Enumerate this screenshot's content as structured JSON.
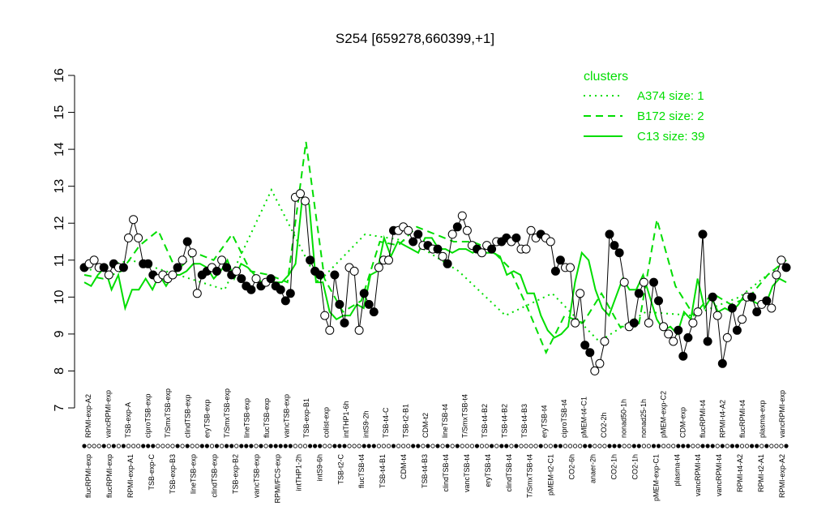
{
  "chart_data": {
    "type": "line",
    "title": "S254 [659278,660399,+1]",
    "ylim": [
      7,
      16
    ],
    "yticks": [
      7,
      8,
      9,
      10,
      11,
      12,
      13,
      14,
      15,
      16
    ],
    "legend": {
      "title": "clusters",
      "placement": "top-right",
      "entries": [
        {
          "label": "A374 size: 1",
          "style": "dotted"
        },
        {
          "label": "B172 size: 2",
          "style": "dashed"
        },
        {
          "label": "C13 size: 39",
          "style": "solid"
        }
      ]
    },
    "colors": {
      "cluster": "#00dd00",
      "series": "#000000"
    },
    "x_labels_top": [
      "RPMI-exp-A2",
      "vancRPMI-exp",
      "TSB-exp-A",
      "ciproTSB-exp",
      "T/SmxTSB-exp",
      "clindTSB-exp",
      "eryTSB-exp",
      "T/SmxTSB-exp",
      "lineTSB-exp",
      "flucTSB-exp",
      "vancTSB-exp",
      "TSB-exp-B1",
      "colist-exp",
      "intTHP1-6h",
      "intS9-2h",
      "TSB-t4-C",
      "TSB-t2-B1",
      "CDM-t2",
      "lineTSB-t4",
      "T/SmxTSB-t4",
      "TSB-t4-B2",
      "TSB-t4-B2",
      "TSB-t4-B3",
      "eryTSB-t4",
      "ciproTSB-t4",
      "pMEM-t4-C1",
      "CO2-2h",
      "nonad50-1h",
      "nonad25-1h",
      "pMEM-exp-C2",
      "CDM-exp",
      "flucRPMI-t4",
      "RPMI-t4-A2",
      "flucRPMI-t4",
      "plasma-exp",
      "vancRPMI-exp"
    ],
    "x_labels_bottom": [
      "flucRPMI-exp",
      "flucRPMI-exp",
      "RPMI-exp-A1",
      "TSB-exp-C",
      "TSB-exp-B3",
      "lineTSB-exp",
      "clindTSB-exp",
      "TSB-exp-B2",
      "vancTSB-exp",
      "RPMI/FCS-exp",
      "intTHP1-2h",
      "intS9-6h",
      "TSB-t2-C",
      "flucTSB-t4",
      "TSB-t4-B1",
      "CDM-t4",
      "TSB-t4-B3",
      "clindTSB-t4",
      "vancTSB-t4",
      "eryTSB-t4",
      "clindTSB-t4",
      "T/SmxTSB-t4",
      "pMEM-t2-C1",
      "CO2-6h",
      "anaer-2h",
      "CO2-1h",
      "CO2-1h",
      "pMEM-exp-C1",
      "plasma-t4",
      "vancRPMI-t4",
      "vancRPMI-t4",
      "RPMI-t4-A2",
      "RPMI-t2-A1",
      "RPMI-exp-A2"
    ],
    "series": [
      {
        "values": [
          10.8,
          10.9,
          11.0,
          10.8,
          10.8,
          10.6,
          10.9,
          10.8,
          10.8,
          11.6,
          12.1,
          11.6,
          10.9,
          10.9,
          10.6,
          10.5,
          10.6,
          10.5,
          10.6,
          10.8,
          11.0,
          11.5,
          11.2,
          10.1,
          10.6,
          10.7,
          10.8,
          10.7,
          11.0,
          10.8,
          10.6,
          10.7,
          10.5,
          10.3,
          10.2,
          10.5,
          10.3,
          10.4,
          10.5,
          10.3,
          10.2,
          9.9,
          10.1,
          12.7,
          12.8,
          12.6,
          11.0,
          10.7,
          10.6,
          9.5,
          9.1,
          10.6,
          9.8,
          9.3,
          10.8,
          10.7,
          9.1,
          10.1,
          9.8,
          9.6,
          10.8,
          11.0,
          11.0,
          11.8,
          11.8,
          11.9,
          11.8,
          11.5,
          11.7,
          11.4,
          11.4,
          11.3,
          11.3,
          11.1,
          10.9,
          11.7,
          11.9,
          12.2,
          11.8,
          11.4,
          11.3,
          11.2,
          11.4,
          11.3,
          11.5,
          11.5,
          11.6,
          11.5,
          11.6,
          11.3,
          11.3,
          11.8,
          11.6,
          11.7,
          11.6,
          11.5,
          10.7,
          11.0,
          10.8,
          10.8,
          9.3,
          10.1,
          8.7,
          8.5,
          8.0,
          8.2,
          8.8,
          11.7,
          11.4,
          11.2,
          10.4,
          9.2,
          9.3,
          10.1,
          10.4,
          9.3,
          10.4,
          9.9,
          9.2,
          9.0,
          8.8,
          9.1,
          8.4,
          8.9,
          9.3,
          9.6,
          11.7,
          8.8,
          10.0,
          9.5,
          8.2,
          8.9,
          9.7,
          9.1,
          9.4,
          10.0,
          10.0,
          9.6,
          9.8,
          9.9,
          9.7,
          10.6,
          11.0,
          10.8
        ],
        "filled": [
          1,
          0,
          0,
          0,
          1,
          0,
          1,
          0,
          1,
          0,
          0,
          0,
          1,
          1,
          1,
          0,
          0,
          0,
          0,
          1,
          0,
          1,
          0,
          0,
          1,
          1,
          0,
          1,
          0,
          1,
          1,
          0,
          1,
          1,
          1,
          0,
          1,
          0,
          1,
          1,
          1,
          1,
          1,
          0,
          0,
          0,
          1,
          1,
          1,
          0,
          0,
          1,
          1,
          1,
          0,
          0,
          0,
          1,
          1,
          1,
          0,
          0,
          0,
          1,
          0,
          0,
          0,
          1,
          1,
          0,
          1,
          0,
          1,
          0,
          1,
          0,
          1,
          0,
          0,
          0,
          1,
          0,
          0,
          1,
          0,
          1,
          1,
          0,
          1,
          0,
          0,
          0,
          0,
          1,
          0,
          0,
          1,
          1,
          0,
          0,
          0,
          0,
          1,
          1,
          0,
          0,
          0,
          1,
          1,
          1,
          0,
          0,
          1,
          1,
          0,
          0,
          1,
          1,
          0,
          0,
          0,
          1,
          1,
          1,
          0,
          0,
          1,
          1,
          1,
          0,
          1,
          0,
          1,
          1,
          0,
          0,
          1,
          1,
          0,
          1,
          0,
          0,
          0,
          1,
          0
        ]
      }
    ],
    "clusters": [
      {
        "name": "C13",
        "style": "solid",
        "values": [
          10.4,
          10.3,
          10.6,
          10.8,
          10.2,
          10.6,
          9.7,
          10.2,
          10.2,
          10.5,
          10.2,
          10.6,
          10.3,
          10.6,
          10.6,
          10.7,
          10.9,
          10.9,
          10.8,
          10.5,
          10.7,
          11.0,
          10.5,
          10.9,
          10.8,
          10.6,
          10.4,
          10.5,
          10.4,
          10.4,
          10.6,
          10.9,
          12.7,
          12.5,
          10.4,
          10.4,
          9.6,
          9.4,
          9.5,
          9.5,
          9.8,
          9.7,
          10.6,
          10.7,
          11.6,
          11.1,
          11.5,
          11.4,
          11.3,
          11.2,
          11.6,
          11.6,
          11.3,
          11.3,
          11.2,
          11.3,
          11.3,
          11.2,
          11.3,
          11.2,
          11.2,
          11.1,
          10.6,
          10.7,
          10.6,
          10.1,
          10.1,
          9.5,
          9.1,
          8.9,
          9.0,
          9.2,
          10.4,
          11.2,
          11.0,
          10.2,
          9.7,
          9.5,
          10.0,
          10.5,
          10.2,
          10.2,
          10.6,
          10.0,
          9.4,
          9.1,
          9.2,
          9.0,
          9.6,
          9.4,
          10.5,
          9.7,
          10.0,
          9.6,
          9.7,
          9.6,
          9.8,
          10.1,
          9.9,
          9.8,
          9.8,
          10.3,
          10.5,
          10.4
        ]
      },
      {
        "name": "B172",
        "style": "dashed",
        "values": [
          10.6,
          10.5,
          10.7,
          11.4,
          11.8,
          10.7,
          11.2,
          11.0,
          11.7,
          10.7,
          10.6,
          10.4,
          14.2,
          10.5,
          9.6,
          9.9,
          11.5,
          11.4,
          11.9,
          11.7,
          11.5,
          11.5,
          11.3,
          10.8,
          9.7,
          8.5,
          9.5,
          9.3,
          10.1,
          9.2,
          9.2,
          12.1,
          10.3,
          9.5,
          10.1,
          9.8,
          10.0,
          10.6,
          11.0
        ]
      },
      {
        "name": "A374",
        "style": "dotted",
        "values": [
          10.7,
          11.0,
          10.6,
          10.2,
          12.9,
          10.4,
          11.7,
          11.5,
          10.7,
          9.5,
          10.1,
          8.8,
          9.6,
          9.5,
          10.0,
          11.0
        ]
      }
    ]
  }
}
